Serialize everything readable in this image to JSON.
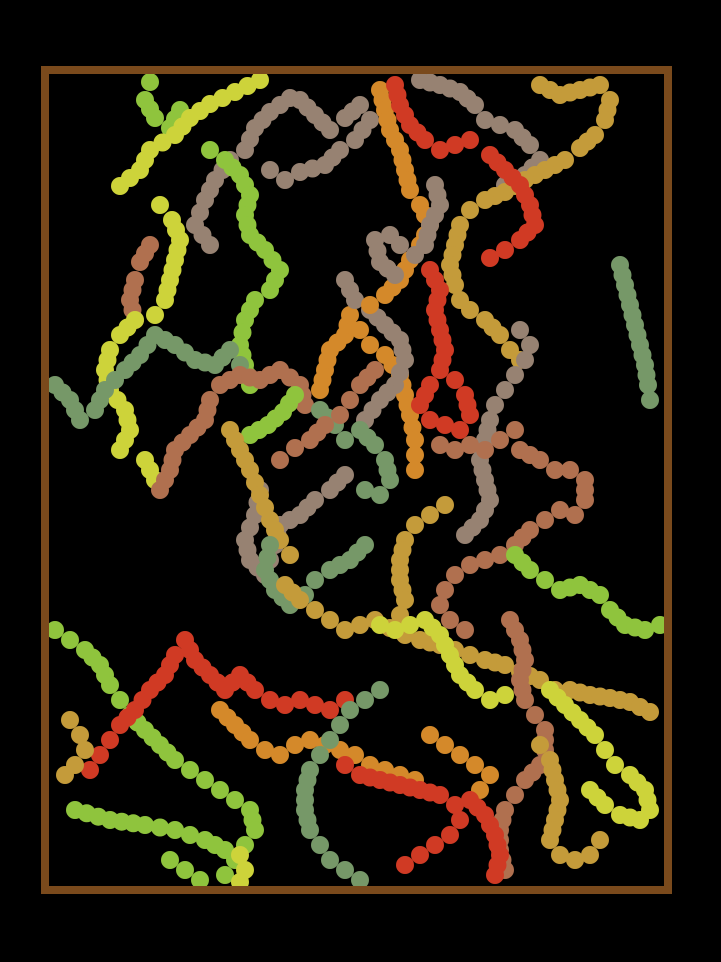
{
  "artwork": {
    "description_kind": "generative dot-trail artwork",
    "background_color": "#000000",
    "frame_color": "#7a4a1c",
    "palette": {
      "lime": "#8fc43d",
      "yellow": "#cdd33a",
      "sage": "#769868",
      "taupe": "#978272",
      "rust": "#b0704f",
      "orange": "#d4892a",
      "red": "#d03a24",
      "ochre": "#c49b3a"
    }
  }
}
